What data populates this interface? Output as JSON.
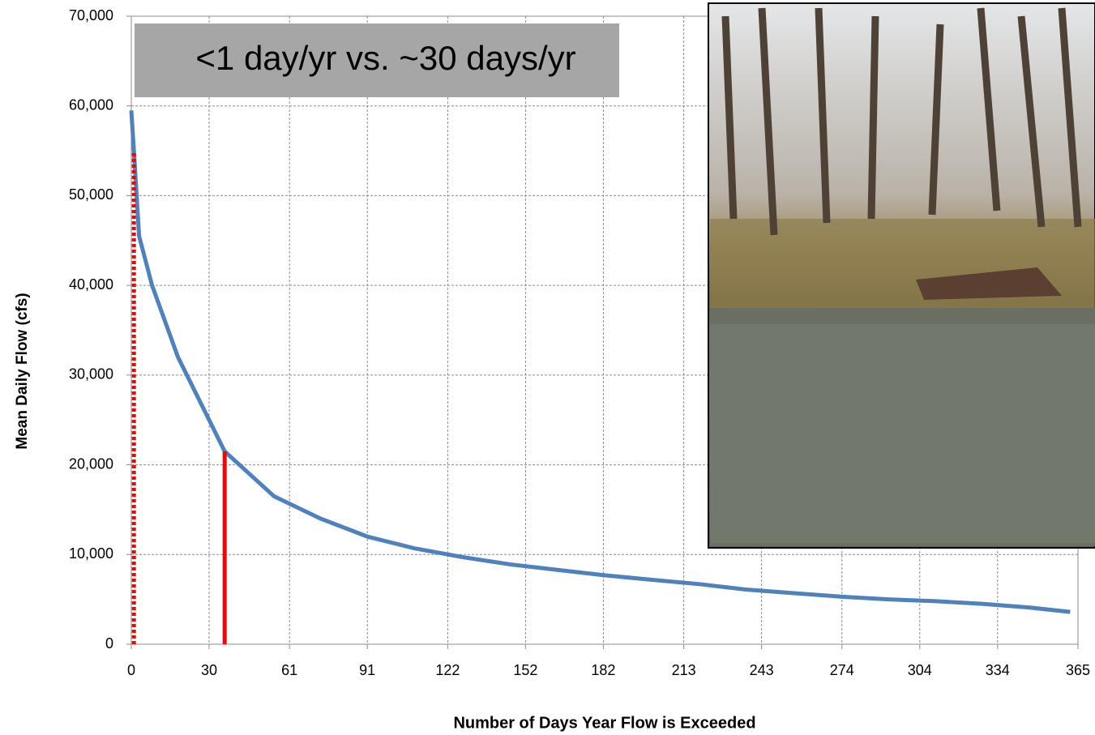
{
  "chart_data": {
    "type": "line",
    "xlabel": "Number of Days Year Flow is Exceeded",
    "ylabel": "Mean Daily Flow (cfs)",
    "annotation": "<1 day/yr vs. ~30 days/yr",
    "xlim": [
      0,
      365
    ],
    "ylim": [
      0,
      70000
    ],
    "xticks": [
      0,
      30,
      61,
      91,
      122,
      152,
      182,
      213,
      243,
      274,
      304,
      334,
      365
    ],
    "yticks": [
      0,
      {
        "value": 10000,
        "label": "10,000"
      },
      {
        "value": 20000,
        "label": "20,000"
      },
      {
        "value": 30000,
        "label": "30,000"
      },
      {
        "value": 40000,
        "label": "40,000"
      },
      {
        "value": 50000,
        "label": "50,000"
      },
      {
        "value": 60000,
        "label": "60,000"
      },
      {
        "value": 70000,
        "label": "70,000"
      }
    ],
    "grid": true,
    "series": [
      {
        "color": "#4f81bd",
        "x": [
          0,
          1,
          3,
          8,
          18,
          30,
          36,
          55,
          73,
          91,
          109,
          128,
          146,
          164,
          182,
          200,
          219,
          237,
          255,
          274,
          292,
          310,
          328,
          346,
          362
        ],
        "values": [
          59500,
          55000,
          45500,
          40000,
          32000,
          25000,
          21500,
          16500,
          14000,
          12000,
          10700,
          9700,
          8900,
          8300,
          7700,
          7200,
          6700,
          6100,
          5700,
          5300,
          5000,
          4800,
          4500,
          4100,
          3600
        ]
      }
    ],
    "reference_lines": [
      {
        "x": 1,
        "y": 55000,
        "color": "#ff0000",
        "style": "dotted"
      },
      {
        "x": 36,
        "y": 21500,
        "color": "#ff0000",
        "style": "solid"
      }
    ]
  }
}
